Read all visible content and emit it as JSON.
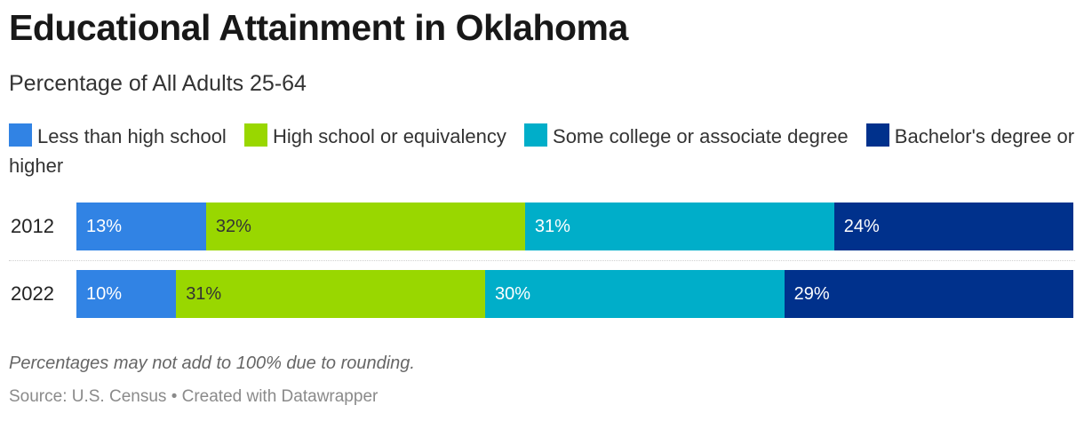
{
  "chart_data": {
    "type": "bar",
    "orientation": "horizontal",
    "stacked": true,
    "title": "Educational Attainment in Oklahoma",
    "subtitle": "Percentage of All Adults 25-64",
    "categories": [
      "2012",
      "2022"
    ],
    "series": [
      {
        "name": "Less than high school",
        "color": "#3183e4",
        "values": [
          13,
          10
        ],
        "labels": [
          "13%",
          "10%"
        ],
        "label_color": "#ffffff"
      },
      {
        "name": "High school or equivalency",
        "color": "#99d700",
        "values": [
          32,
          31
        ],
        "labels": [
          "32%",
          "31%"
        ],
        "label_color": "#333333"
      },
      {
        "name": "Some college or associate degree",
        "color": "#00aec9",
        "values": [
          31,
          30
        ],
        "labels": [
          "31%",
          "30%"
        ],
        "label_color": "#ffffff"
      },
      {
        "name": "Bachelor's degree or higher",
        "color": "#00318c",
        "values": [
          24,
          29
        ],
        "labels": [
          "24%",
          "29%"
        ],
        "label_color": "#ffffff"
      }
    ],
    "legend_position": "top",
    "grid": false
  },
  "notes": "Percentages may not add to 100% due to rounding.",
  "source": "Source: U.S. Census • Created with Datawrapper"
}
